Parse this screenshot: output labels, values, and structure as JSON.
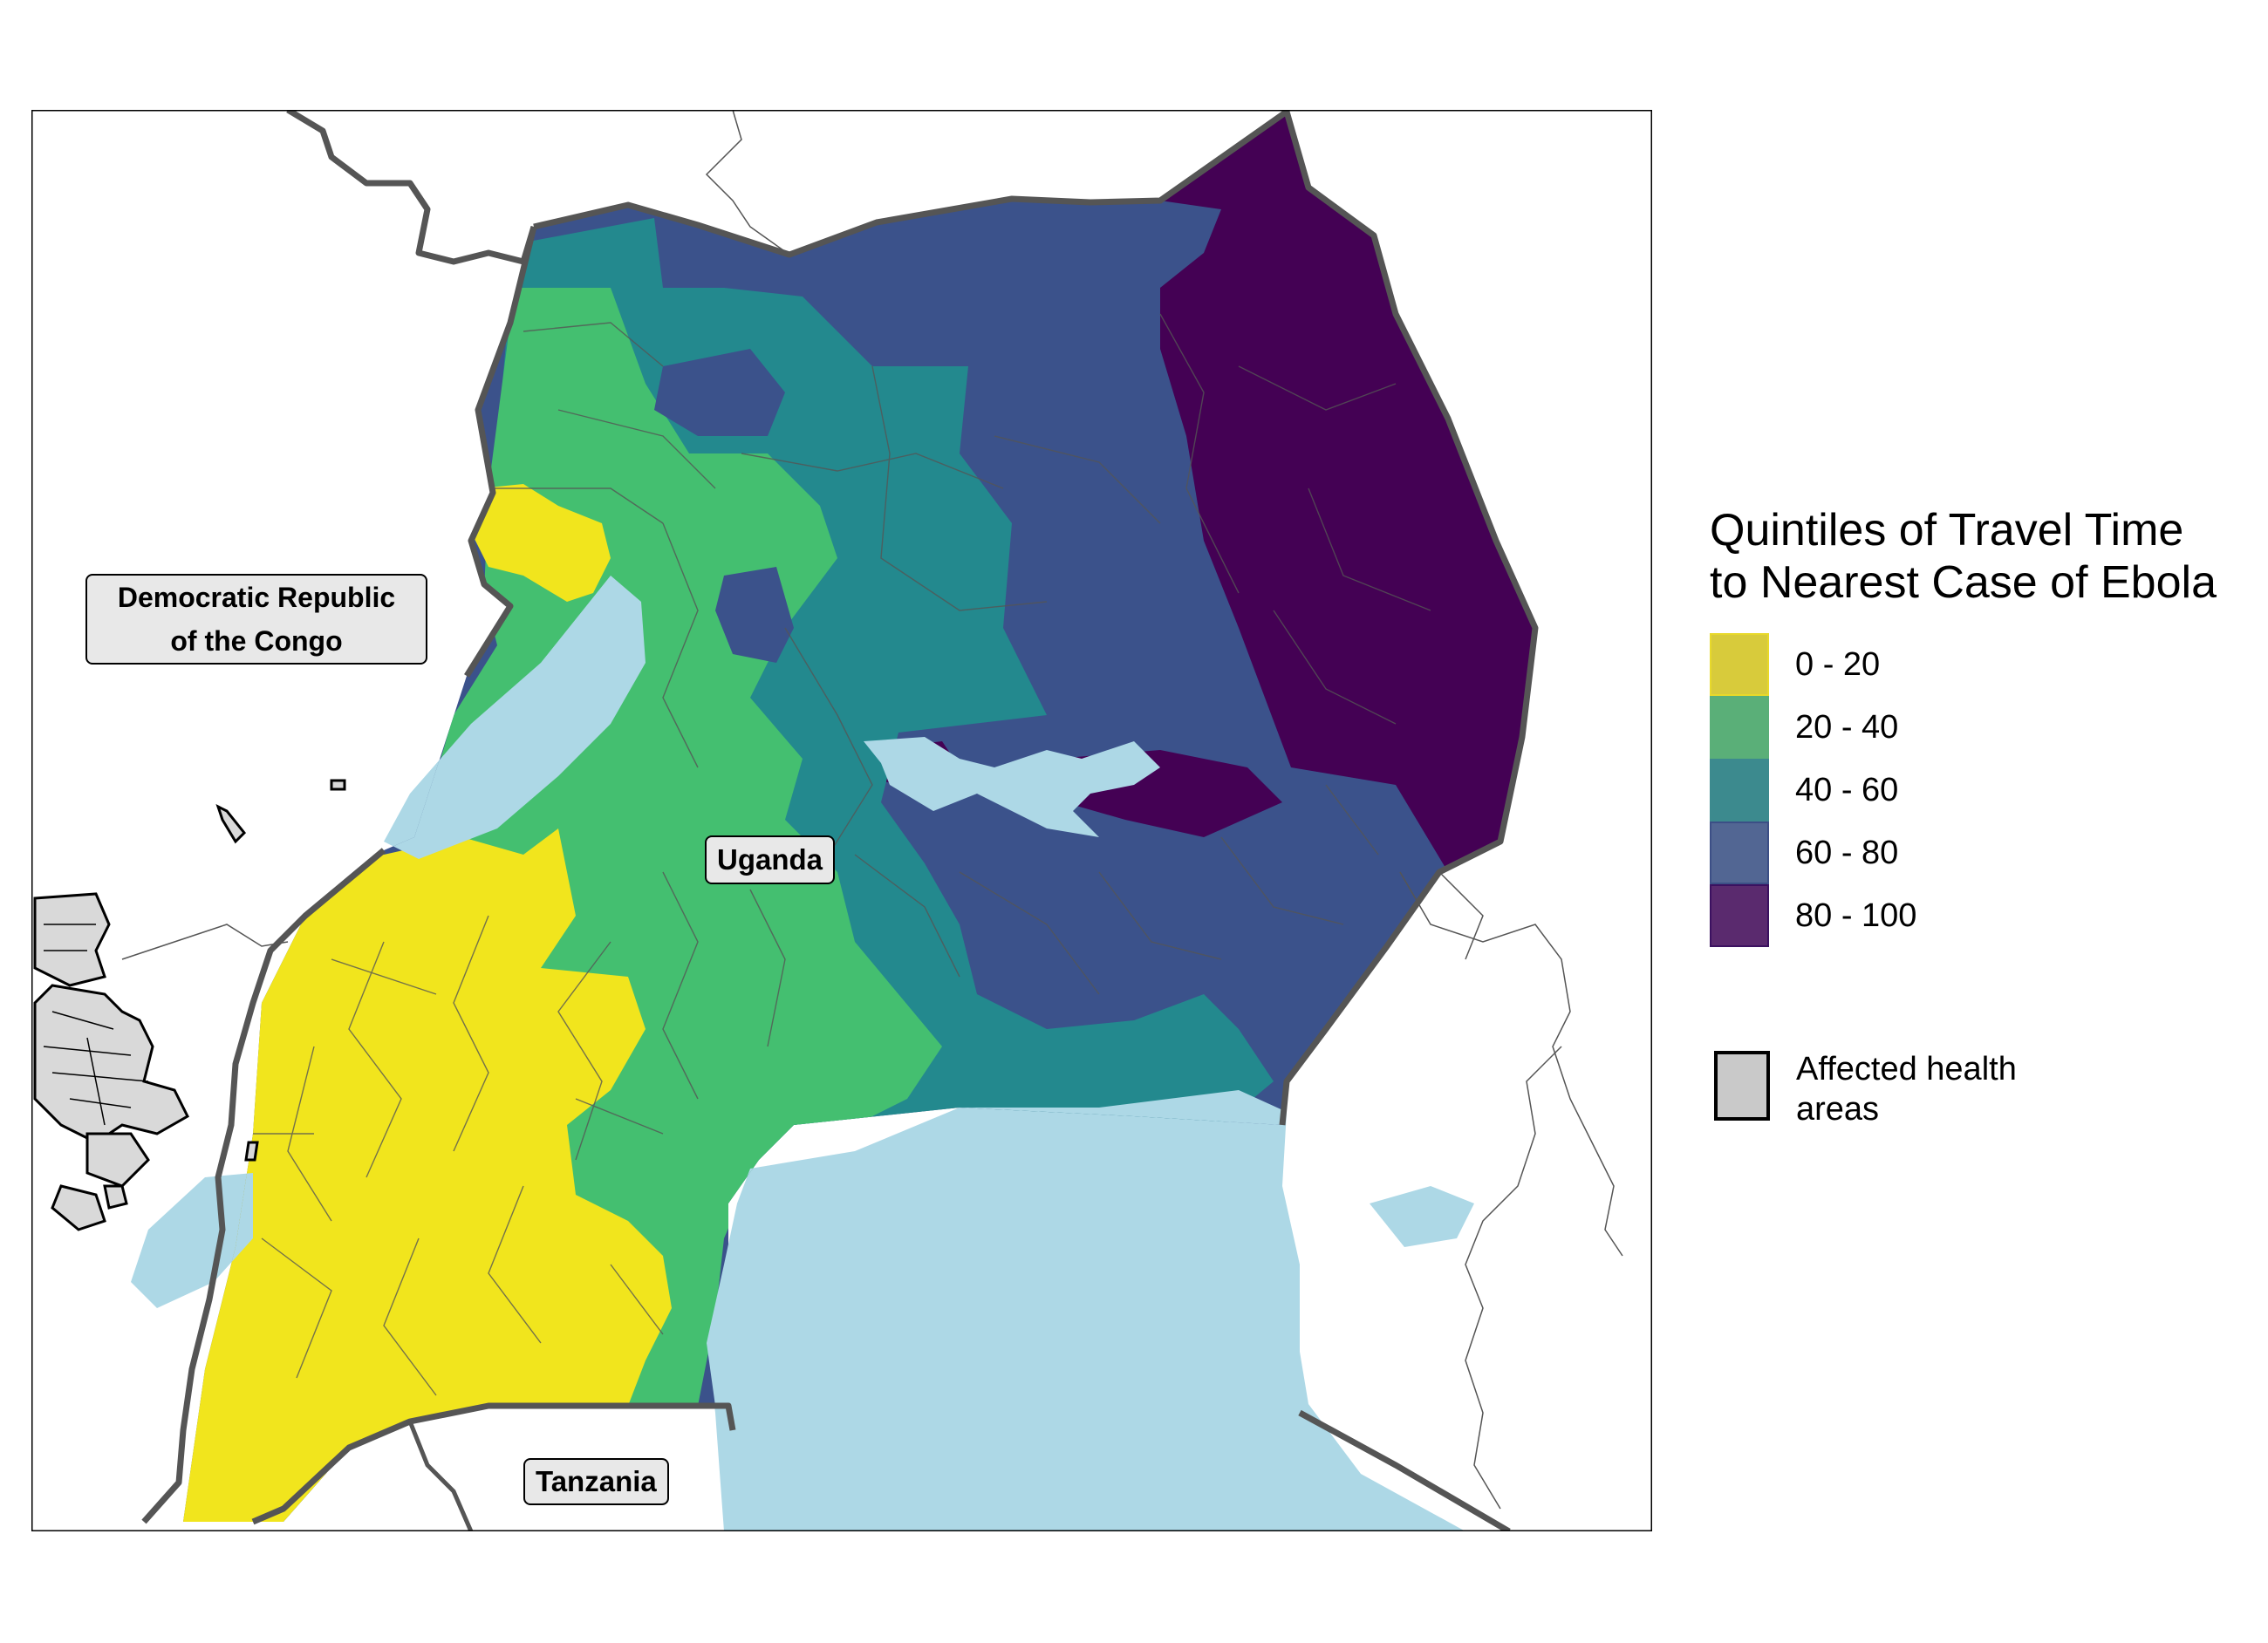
{
  "map": {
    "labels": {
      "drc": "Democratic Republic\nof the Congo",
      "uganda": "Uganda",
      "tanzania": "Tanzania"
    }
  },
  "legend": {
    "title": "Quintiles of Travel Time\nto Nearest Case of Ebola",
    "items": [
      {
        "label": "0 - 20",
        "color": "#d8cb3b",
        "border": "#e8d92a"
      },
      {
        "label": "20 - 40",
        "color": "#5aaf78",
        "border": "#5aaf78"
      },
      {
        "label": "40 - 60",
        "color": "#3c8a8e",
        "border": "#3c8a8e"
      },
      {
        "label": "60 - 80",
        "color": "#526693",
        "border": "#3c4f86"
      },
      {
        "label": "80 - 100",
        "color": "#5a2a6e",
        "border": "#3b1160"
      }
    ],
    "affected_label": "Affected health areas"
  },
  "colors": {
    "q1": "#f1e51d",
    "q2": "#44bf70",
    "q3": "#23898e",
    "q4": "#3b528b",
    "q5": "#440154",
    "water": "#add8e6",
    "border": "#555555"
  }
}
